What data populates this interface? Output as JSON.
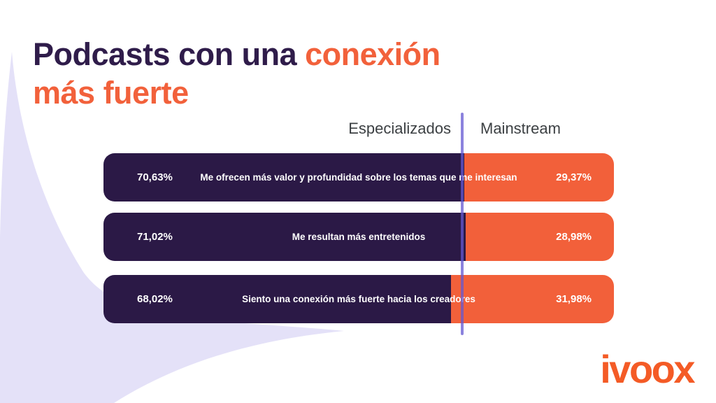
{
  "title": {
    "line1_purple": "Podcasts con una ",
    "line1_orange": "conexión",
    "line2_orange": "más fuerte"
  },
  "columns": {
    "left": "Especializados",
    "right": "Mainstream"
  },
  "bars": [
    {
      "left_value": "70,63%",
      "label": "Me ofrecen más valor y profundidad sobre los temas que me interesan",
      "right_value": "29,37%",
      "left_pct": 70.63,
      "right_pct": 29.37
    },
    {
      "left_value": "71,02%",
      "label": "Me resultan más entretenidos",
      "right_value": "28,98%",
      "left_pct": 71.02,
      "right_pct": 28.98
    },
    {
      "left_value": "68,02%",
      "label": "Siento una conexión más fuerte hacia los creadores",
      "right_value": "31,98%",
      "left_pct": 68.02,
      "right_pct": 31.98
    }
  ],
  "brand": {
    "logo_text": "ivoox"
  },
  "colors": {
    "title_purple": "#2F1C4A",
    "bar_purple": "#2B1946",
    "bar_orange": "#F2603A",
    "divider_periwinkle": "#837CE0",
    "background_lavender": "#E4E1F8",
    "header_gray": "#3C4043",
    "logo_orange": "#F45B26"
  },
  "chart_data": {
    "type": "bar",
    "orientation": "horizontal-stacked",
    "title": "Podcasts con una conexión más fuerte",
    "categories": [
      "Me ofrecen más valor y profundidad sobre los temas que me interesan",
      "Me resultan más entretenidos",
      "Siento una conexión más fuerte hacia los creadores"
    ],
    "series": [
      {
        "name": "Especializados",
        "values": [
          70.63,
          71.02,
          68.02
        ]
      },
      {
        "name": "Mainstream",
        "values": [
          29.37,
          28.98,
          31.98
        ]
      }
    ],
    "value_labels": [
      [
        "70,63%",
        "29,37%"
      ],
      [
        "71,02%",
        "28,98%"
      ],
      [
        "68,02%",
        "31,98%"
      ]
    ],
    "xlim": [
      0,
      100
    ],
    "grid": false,
    "legend_position": "top (column headers above bars)",
    "value_format": "percent with comma decimal separator"
  }
}
